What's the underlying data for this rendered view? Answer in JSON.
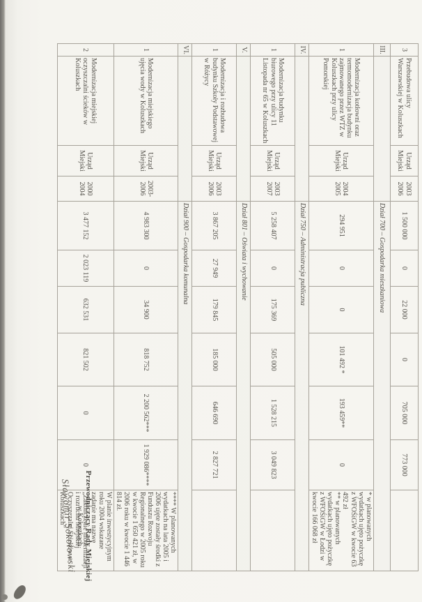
{
  "colors": {
    "page": "#f5f4ef",
    "ink": "#55524c",
    "border": "#a6a299"
  },
  "table": {
    "rows": [
      {
        "type": "task",
        "lp": "3",
        "name": "Przebudowa ulicy Warszawskiej w Koluszkach",
        "unit": "Urząd Miejski",
        "years": [
          "2003",
          "2006"
        ],
        "values": [
          "1 500 000",
          "0",
          "22 000",
          "0",
          "705 000",
          "773 000"
        ],
        "remarks": ""
      },
      {
        "type": "section",
        "lp": "III.",
        "title": "Dział 700 – Gospodarka mieszkaniowa"
      },
      {
        "type": "task",
        "lp": "1",
        "name": "Modernizacja kotłowni oraz termomodernizacja budynku zajmowanego przez WTZ w Koluszkach przy ulicy Pomorskiej",
        "unit": "Urząd Miejski",
        "years": [
          "2004",
          "2005"
        ],
        "values": [
          "294 951",
          "0",
          "0",
          "101 492 *",
          "193 459**",
          "0"
        ],
        "remarks": "* w planowanych wydatkach ujęto pożyczkę z WFOŚiGW w kwocie 63 492 zł\n** w planowanych wydatkach ujęto pożyczkę z WFOŚiGW w Łodzi w kwocie 166 068 zł"
      },
      {
        "type": "section",
        "lp": "IV.",
        "title": "Dział 750 – Administracja publiczna"
      },
      {
        "type": "task",
        "lp": "1",
        "name": "Modernizacja budynku biurowego przy ulicy 11 Listopada nr 65 w Koluszkach",
        "unit": "Urząd Miejski",
        "years": [
          "2003",
          "2007"
        ],
        "values": [
          "5 258 407",
          "0",
          "175 369",
          "505 000",
          "1 528 215",
          "3 049 823"
        ],
        "remarks": ""
      },
      {
        "type": "section",
        "lp": "V.",
        "title": "Dział 801 – Oświata i wychowanie"
      },
      {
        "type": "task",
        "lp": "1",
        "name": "Modernizacja i rozbudowa budynku Szkoły Podstawowej w Różycy",
        "unit": "Urząd Miejski",
        "years": [
          "2003",
          "2006"
        ],
        "values": [
          "3 867 205",
          "27 949",
          "179 845",
          "185 000",
          "646 690",
          "2 827 721"
        ],
        "remarks": ""
      },
      {
        "type": "section",
        "lp": "VI.",
        "title": "Dział 900 – Gospodarka komunalna"
      },
      {
        "type": "task",
        "lp": "1",
        "name": "Modernizacja miejskiego ujęcia wody w Koluszkach",
        "unit": "Urząd Miejski",
        "years": [
          "2003-",
          "2006"
        ],
        "values": [
          "4 983 300",
          "0",
          "34 900",
          "818 752",
          "2 200 562***",
          "1 929 086****"
        ],
        "remarks": "**** W planowanych wydatkach na lata 2005 i 2006 ujęte zostały środki z Funduszu Rozwoju Regionalnego w 2005 roku w kwocie 1 650 421 zł, w 2006 roku w kwocie 1 446 814 zł."
      },
      {
        "type": "task",
        "lp": "2",
        "name": "Modernizacja miejskiej oczyszczalni ścieków w Koluszkach",
        "unit": "Urząd Miejski",
        "years": [
          "2000",
          "2004"
        ],
        "values": [
          "3 477 152",
          "2 023 119",
          "632 531",
          "821 502",
          "0",
          "0"
        ],
        "remarks": "W planie inwestycyjnym roku 2004 wskazane zadanie ma nazwę „Zakończenie modernizacji i rozruchu Miejskiej Oczyszczalni Ścieków w Koluszkach”"
      }
    ]
  },
  "signature": {
    "title_line1": "Przewodniczący Rady Miejskiej",
    "title_line2": "w Koluszkach",
    "name": "Sławomir Sokołowski"
  }
}
